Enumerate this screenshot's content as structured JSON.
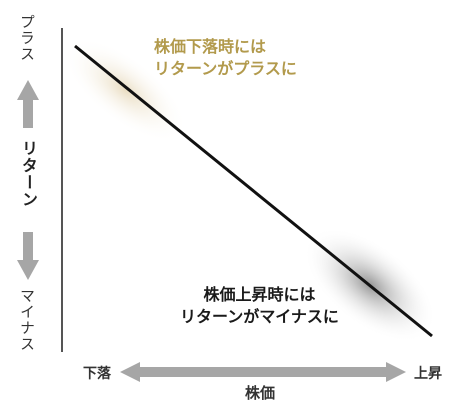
{
  "y_axis": {
    "top_label": "プラス",
    "middle_label": "リターン",
    "bottom_label": "マイナス"
  },
  "x_axis": {
    "left_label": "下落",
    "right_label": "上昇",
    "center_label": "株価"
  },
  "annotations": {
    "top_left": {
      "line1": "株価下落時には",
      "line2": "リターンがプラスに",
      "color": "#b29a4c"
    },
    "bottom_right": {
      "line1": "株価上昇時には",
      "line2": "リターンがマイナスに",
      "color": "#1a1a1a"
    }
  },
  "colors": {
    "axis": "#555555",
    "arrow": "#a6a6a6",
    "diagonal": "#111111",
    "glow_top": "#e6d8b8",
    "glow_bottom": "#9a9a9a"
  }
}
